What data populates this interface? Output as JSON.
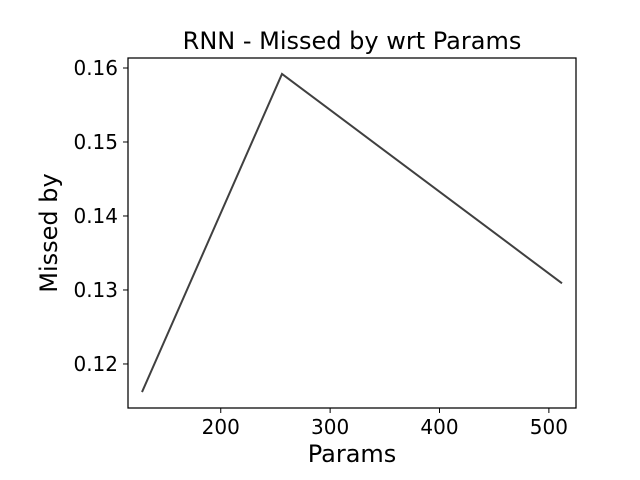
{
  "chart_data": {
    "type": "line",
    "title": "RNN - Missed by wrt Params",
    "xlabel": "Params",
    "ylabel": "Missed by",
    "x": [
      128,
      256,
      512
    ],
    "series": [
      {
        "values": [
          0.1162,
          0.1592,
          0.1309
        ],
        "color": "#404040"
      }
    ],
    "xlim": [
      115.2,
      524.8
    ],
    "ylim": [
      0.11405,
      0.16135
    ],
    "xticks": [
      200,
      300,
      400,
      500
    ],
    "xtick_labels": [
      "200",
      "300",
      "400",
      "500"
    ],
    "yticks": [
      0.12,
      0.13,
      0.14,
      0.15,
      0.16
    ],
    "ytick_labels": [
      "0.12",
      "0.13",
      "0.14",
      "0.15",
      "0.16"
    ],
    "grid": false,
    "legend": "none"
  }
}
